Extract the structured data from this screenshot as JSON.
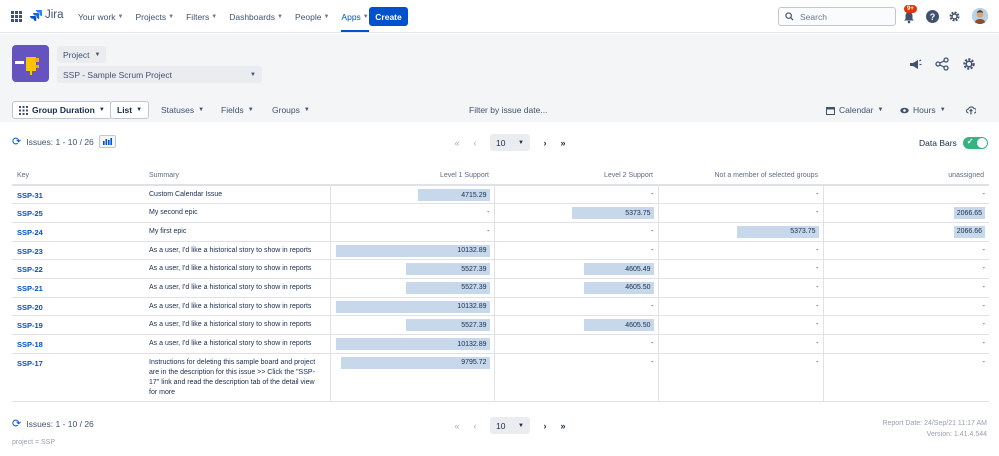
{
  "nav": {
    "app_name": "Jira",
    "menu": [
      {
        "label": "Your work",
        "active": false
      },
      {
        "label": "Projects",
        "active": false
      },
      {
        "label": "Filters",
        "active": false
      },
      {
        "label": "Dashboards",
        "active": false
      },
      {
        "label": "People",
        "active": false
      },
      {
        "label": "Apps",
        "active": true
      }
    ],
    "create_label": "Create",
    "search_placeholder": "Search",
    "notif_badge": "9+",
    "help_label": "?"
  },
  "project": {
    "type_label": "Project",
    "board_label": "SSP - Sample Scrum Project"
  },
  "toolbar": {
    "group_duration": "Group Duration",
    "list": "List",
    "statuses": "Statuses",
    "fields": "Fields",
    "groups": "Groups",
    "filter_date": "Filter by issue date...",
    "calendar": "Calendar",
    "hours": "Hours"
  },
  "summary": {
    "issues_label": "Issues: 1 - 10 / 26",
    "page_size": "10",
    "data_bars_label": "Data Bars",
    "data_bars_on": true
  },
  "pager": {
    "first": "«",
    "prev": "‹",
    "next": "›",
    "last": "»"
  },
  "table": {
    "columns": [
      "Key",
      "Summary",
      "Level 1 Support",
      "Level 2 Support",
      "Not a member of selected groups",
      "unassigned"
    ],
    "rows": [
      {
        "key": "SSP-31",
        "summary": "Custom Calendar Issue",
        "l1": "4715.29",
        "l2": "-",
        "nm": "-",
        "un": "-"
      },
      {
        "key": "SSP-25",
        "summary": "My second epic",
        "l1": "-",
        "l2": "5373.75",
        "nm": "-",
        "un": "2066.65"
      },
      {
        "key": "SSP-24",
        "summary": "My first epic",
        "l1": "-",
        "l2": "-",
        "nm": "5373.75",
        "un": "2066.66"
      },
      {
        "key": "SSP-23",
        "summary": "As a user, I'd like a historical story to show in reports",
        "l1": "10132.89",
        "l2": "-",
        "nm": "-",
        "un": "-"
      },
      {
        "key": "SSP-22",
        "summary": "As a user, I'd like a historical story to show in reports",
        "l1": "5527.39",
        "l2": "4605.49",
        "nm": "-",
        "un": "-"
      },
      {
        "key": "SSP-21",
        "summary": "As a user, I'd like a historical story to show in reports",
        "l1": "5527.39",
        "l2": "4605.50",
        "nm": "-",
        "un": "-"
      },
      {
        "key": "SSP-20",
        "summary": "As a user, I'd like a historical story to show in reports",
        "l1": "10132.89",
        "l2": "-",
        "nm": "-",
        "un": "-"
      },
      {
        "key": "SSP-19",
        "summary": "As a user, I'd like a historical story to show in reports",
        "l1": "5527.39",
        "l2": "4605.50",
        "nm": "-",
        "un": "-"
      },
      {
        "key": "SSP-18",
        "summary": "As a user, I'd like a historical story to show in reports",
        "l1": "10132.89",
        "l2": "-",
        "nm": "-",
        "un": "-"
      },
      {
        "key": "SSP-17",
        "summary": "Instructions for deleting this sample board and project are in the description for this issue >> Click the \"SSP-17\" link and read the description tab of the detail view for more",
        "l1": "9795.72",
        "l2": "-",
        "nm": "-",
        "un": "-"
      }
    ],
    "bar_max": 10132.89
  },
  "footer": {
    "jql": "project = SSP",
    "report_date": "Report Date: 24/Sep/21 11:17 AM",
    "version": "Version: 1.41.4.544"
  },
  "colors": {
    "accent": "#0052cc",
    "bar": "#c6d8ea",
    "toggle": "#36b37e",
    "project_icon": "#6554c0"
  }
}
